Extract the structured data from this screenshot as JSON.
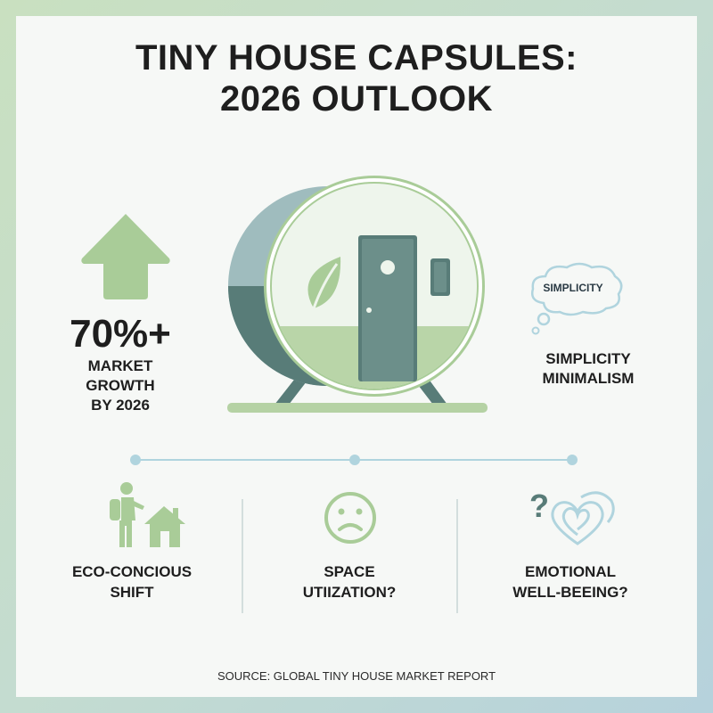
{
  "title": {
    "line1": "TINY HOUSE CAPSULES:",
    "line2": "2026 OUTLOOK"
  },
  "stat": {
    "value": "70%+",
    "label_line1": "MARKET",
    "label_line2": "GROWTH",
    "label_line3": "BY 2026",
    "icon": "up-arrow-icon"
  },
  "capsule": {
    "icons": [
      "capsule-house-illustration",
      "leaf-icon",
      "door-icon",
      "window-icon"
    ]
  },
  "thought": {
    "bubble_text": "SIMPLICITY",
    "label_line1": "SIMPLICITY",
    "label_line2": "MINIMALISM",
    "icon": "thought-bubble-icon"
  },
  "features": [
    {
      "icon": "hiker-and-house-icon",
      "line1": "ECO-CONCIOUS",
      "line2": "SHIFT"
    },
    {
      "icon": "sad-face-icon",
      "line1": "SPACE",
      "line2": "UTIIZATION?"
    },
    {
      "icon": "question-heart-icon",
      "line1": "EMOTIONAL",
      "line2": "WELL-BEEING?"
    }
  ],
  "source": "SOURCE: GLOBAL TINY HOUSE MARKET REPORT",
  "colors": {
    "green": "#a9cc98",
    "teal_dark": "#587c78",
    "teal_light": "#9fbcbe",
    "blue_line": "#b0d4de",
    "text": "#1e1e1e"
  }
}
